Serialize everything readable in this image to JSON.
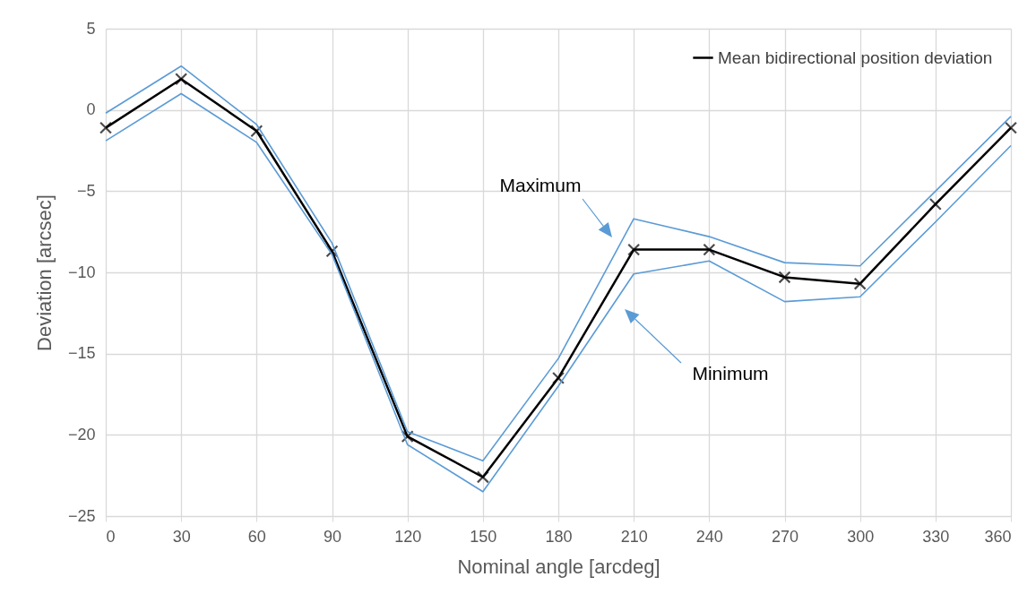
{
  "chart_data": {
    "type": "line",
    "xlabel": "Nominal angle [arcdeg]",
    "ylabel": "Deviation [arcsec]",
    "x": [
      0,
      30,
      60,
      90,
      120,
      150,
      180,
      210,
      240,
      270,
      300,
      330,
      360
    ],
    "series": [
      {
        "name": "Mean bidirectional position deviation",
        "color": "#000000",
        "marker": "cross",
        "values": [
          -1.1,
          1.9,
          -1.3,
          -8.7,
          -20.1,
          -22.6,
          -16.5,
          -8.6,
          -8.6,
          -10.3,
          -10.7,
          -5.8,
          -1.1
        ]
      },
      {
        "color": "#5b9bd5",
        "marker": "none",
        "values": [
          -0.2,
          2.7,
          -0.9,
          -8.2,
          -19.8,
          -21.6,
          -15.3,
          -6.7,
          -7.8,
          -9.4,
          -9.6,
          -5.0,
          -0.4
        ]
      },
      {
        "color": "#5b9bd5",
        "marker": "none",
        "values": [
          -1.9,
          1.0,
          -2.0,
          -8.9,
          -20.6,
          -23.5,
          -17.0,
          -10.1,
          -9.3,
          -11.8,
          -11.5,
          -6.9,
          -2.2
        ]
      }
    ],
    "annotations": [
      "Maximum",
      "Minimum"
    ],
    "xlim": [
      0,
      360
    ],
    "xticks": [
      0,
      30,
      60,
      90,
      120,
      150,
      180,
      210,
      240,
      270,
      300,
      330,
      360
    ],
    "ylim": [
      -25,
      5
    ],
    "yticks": [
      -25,
      -20,
      -15,
      -10,
      -5,
      0,
      5
    ],
    "grid": true,
    "legend": "top right",
    "line_style": "solid"
  }
}
